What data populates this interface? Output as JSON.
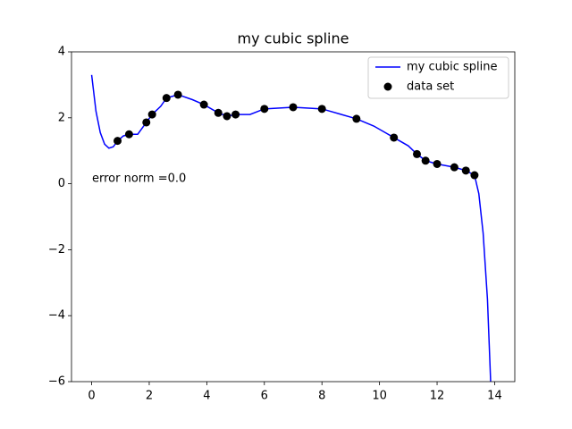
{
  "chart_data": {
    "type": "line",
    "title": "my cubic spline",
    "annotation": "error norm =0.0",
    "xlim": [
      -0.7,
      14.7
    ],
    "ylim": [
      -6,
      4
    ],
    "xticks": [
      0,
      2,
      4,
      6,
      8,
      10,
      12,
      14
    ],
    "yticks": [
      {
        "value": -6,
        "label": "−6"
      },
      {
        "value": -4,
        "label": "−4"
      },
      {
        "value": -2,
        "label": "−2"
      },
      0,
      2,
      4
    ],
    "legend": "upper right",
    "series": [
      {
        "name": "my cubic spline",
        "type": "line",
        "color": "#0000ff",
        "x": [
          0,
          0.15,
          0.3,
          0.45,
          0.6,
          0.75,
          0.9,
          1.1,
          1.3,
          1.6,
          1.9,
          2.1,
          2.4,
          2.6,
          3.0,
          3.5,
          3.9,
          4.4,
          4.7,
          5.0,
          5.5,
          6.0,
          7.0,
          8.0,
          8.6,
          9.2,
          9.8,
          10.2,
          10.5,
          11.0,
          11.3,
          11.6,
          12.0,
          12.6,
          13.0,
          13.3,
          13.45,
          13.6,
          13.75,
          13.87
        ],
        "values": [
          3.3,
          2.2,
          1.55,
          1.2,
          1.08,
          1.12,
          1.3,
          1.45,
          1.5,
          1.5,
          1.86,
          2.1,
          2.35,
          2.6,
          2.7,
          2.55,
          2.4,
          2.15,
          2.05,
          2.1,
          2.1,
          2.27,
          2.32,
          2.27,
          2.12,
          1.97,
          1.75,
          1.55,
          1.4,
          1.15,
          0.9,
          0.7,
          0.6,
          0.5,
          0.4,
          0.26,
          -0.3,
          -1.5,
          -3.5,
          -6.2
        ]
      },
      {
        "name": "data set",
        "type": "scatter",
        "color": "#000000",
        "x": [
          0.9,
          1.3,
          1.9,
          2.1,
          2.6,
          3.0,
          3.9,
          4.4,
          4.7,
          5.0,
          6.0,
          7.0,
          8.0,
          9.2,
          10.5,
          11.3,
          11.6,
          12.0,
          12.6,
          13.0,
          13.3
        ],
        "values": [
          1.3,
          1.5,
          1.86,
          2.1,
          2.6,
          2.7,
          2.4,
          2.15,
          2.05,
          2.1,
          2.27,
          2.32,
          2.27,
          1.97,
          1.4,
          0.9,
          0.7,
          0.6,
          0.5,
          0.4,
          0.26
        ]
      }
    ]
  }
}
